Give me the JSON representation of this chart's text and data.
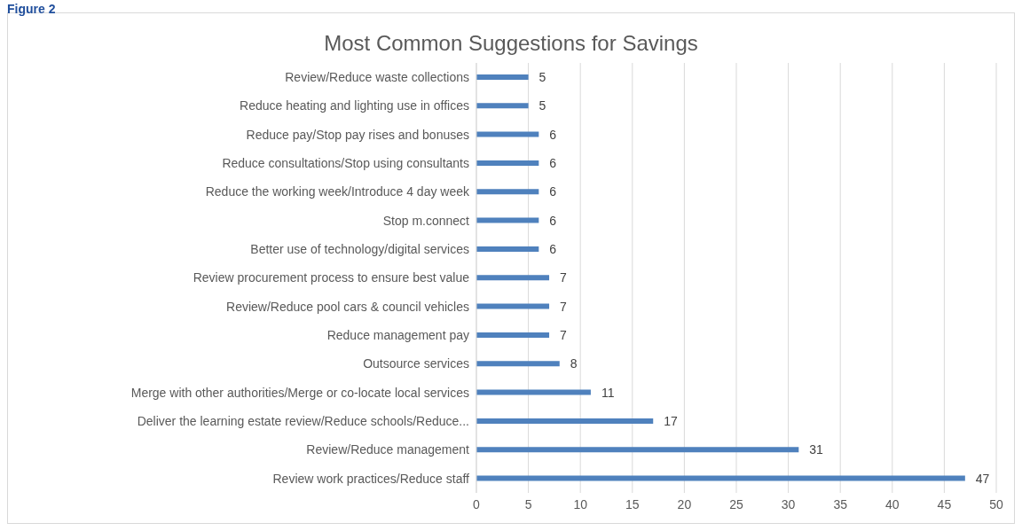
{
  "chart_data": {
    "type": "bar",
    "orientation": "horizontal",
    "title": "Most Common Suggestions for Savings",
    "annotations": [
      "Figure 2"
    ],
    "categories": [
      "Review/Reduce waste collections",
      "Reduce heating and lighting use in offices",
      "Reduce pay/Stop pay rises and bonuses",
      "Reduce consultations/Stop using consultants",
      "Reduce the working week/Introduce 4 day week",
      "Stop m.connect",
      "Better use of technology/digital services",
      "Review procurement process to ensure best value",
      "Review/Reduce pool cars & council vehicles",
      "Reduce management pay",
      "Outsource services",
      "Merge with other authorities/Merge or co-locate local services",
      "Deliver the learning estate review/Reduce schools/Reduce...",
      "Review/Reduce management",
      "Review work practices/Reduce staff"
    ],
    "values": [
      5,
      5,
      6,
      6,
      6,
      6,
      6,
      7,
      7,
      7,
      8,
      11,
      17,
      31,
      47
    ],
    "color": "#4f81bd",
    "xlim": [
      0,
      50
    ],
    "xticks": [
      0,
      5,
      10,
      15,
      20,
      25,
      30,
      35,
      40,
      45,
      50
    ],
    "grid": "x",
    "data_labels": true
  }
}
